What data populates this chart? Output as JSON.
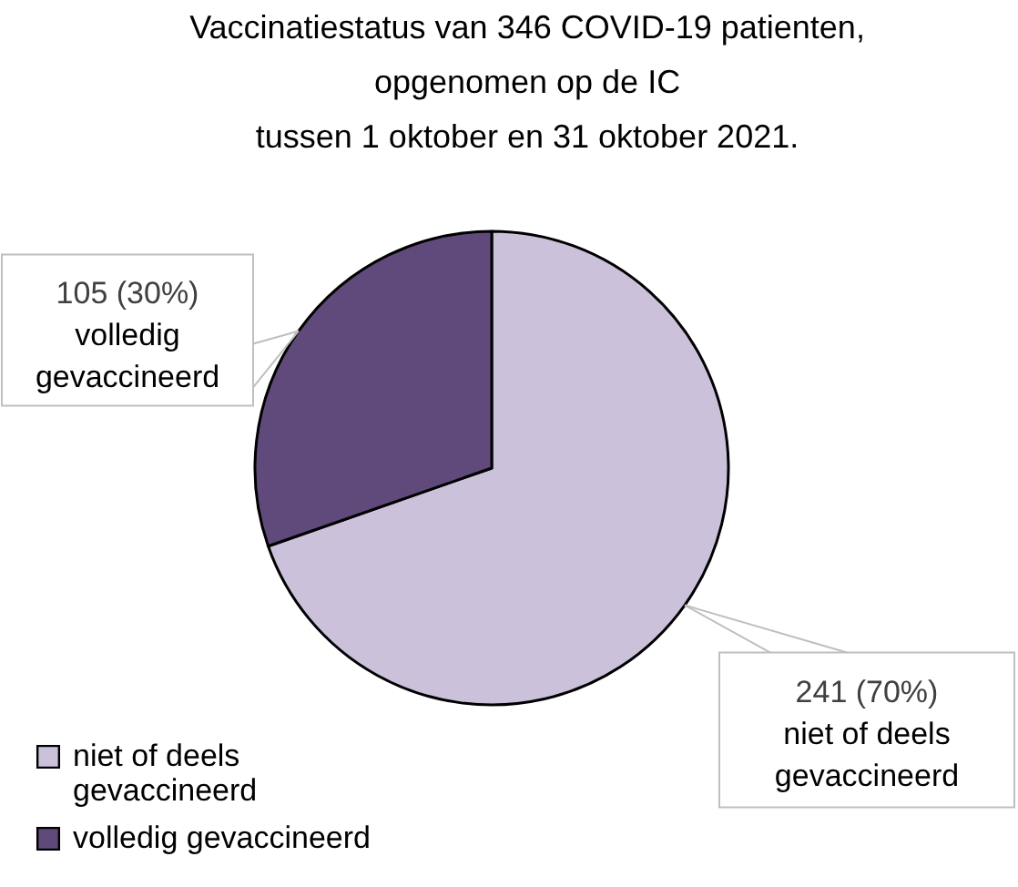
{
  "chart_data": {
    "type": "pie",
    "title": "Vaccinatiestatus van 346 COVID-19 patienten,\nopgenomen op de IC\ntussen 1 oktober en 31 oktober 2021.",
    "categories": [
      "niet of deels gevaccineerd",
      "volledig gevaccineerd"
    ],
    "values": [
      241,
      105
    ],
    "colors": [
      "#ccc1da",
      "#604a7b"
    ],
    "value_labels": [
      "241 (70%)",
      "105 (30%)"
    ],
    "legend": "bottom left"
  }
}
